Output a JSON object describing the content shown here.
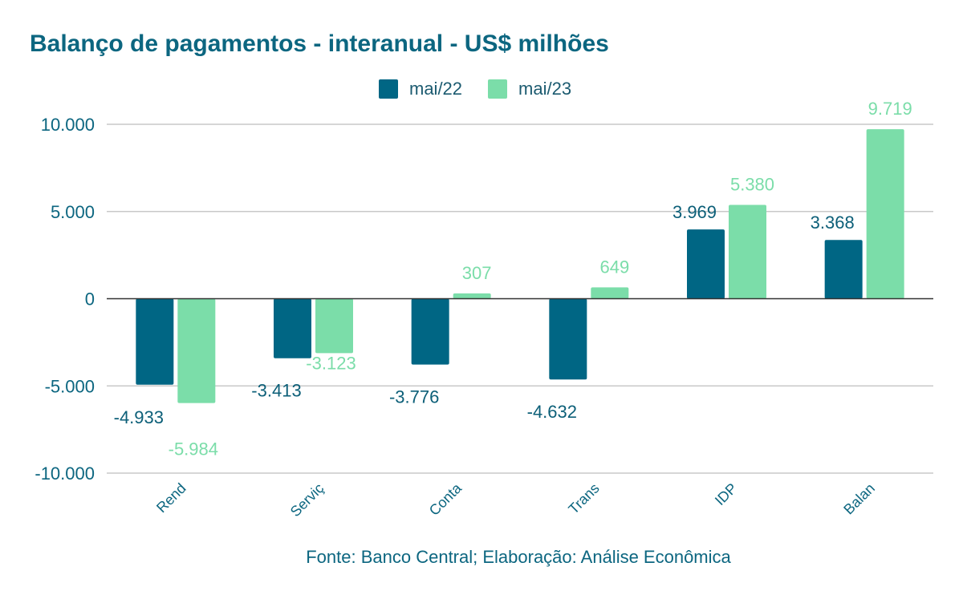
{
  "chart_data": {
    "type": "bar",
    "title": "Balanço de pagamentos - interanual - US$ milhões",
    "categories": [
      "Rend",
      "Serviç",
      "Conta",
      "Trans",
      "IDP",
      "Balan"
    ],
    "series": [
      {
        "name": "mai/22",
        "color": "#006684",
        "values": [
          -4933,
          -3413,
          -3776,
          -4632,
          3969,
          3368
        ],
        "labels": [
          "-4.933",
          "-3.413",
          "-3.776",
          "-4.632",
          "3.969",
          "3.368"
        ]
      },
      {
        "name": "mai/23",
        "color": "#7bdda9",
        "values": [
          -5984,
          -3123,
          307,
          649,
          5380,
          9719
        ],
        "labels": [
          "-5.984",
          "-3.123",
          "307",
          "649",
          "5.380",
          "9.719"
        ]
      }
    ],
    "ylim": [
      -10000,
      10000
    ],
    "yticks": [
      10000,
      5000,
      0,
      -5000,
      -10000
    ],
    "ytick_labels": [
      "10.000",
      "5.000",
      "0",
      "-5.000",
      "-10.000"
    ],
    "xlabel": "",
    "ylabel": "",
    "grid": true,
    "legend_position": "top-center"
  },
  "source": "Fonte: Banco Central; Elaboração: Análise Econômica"
}
